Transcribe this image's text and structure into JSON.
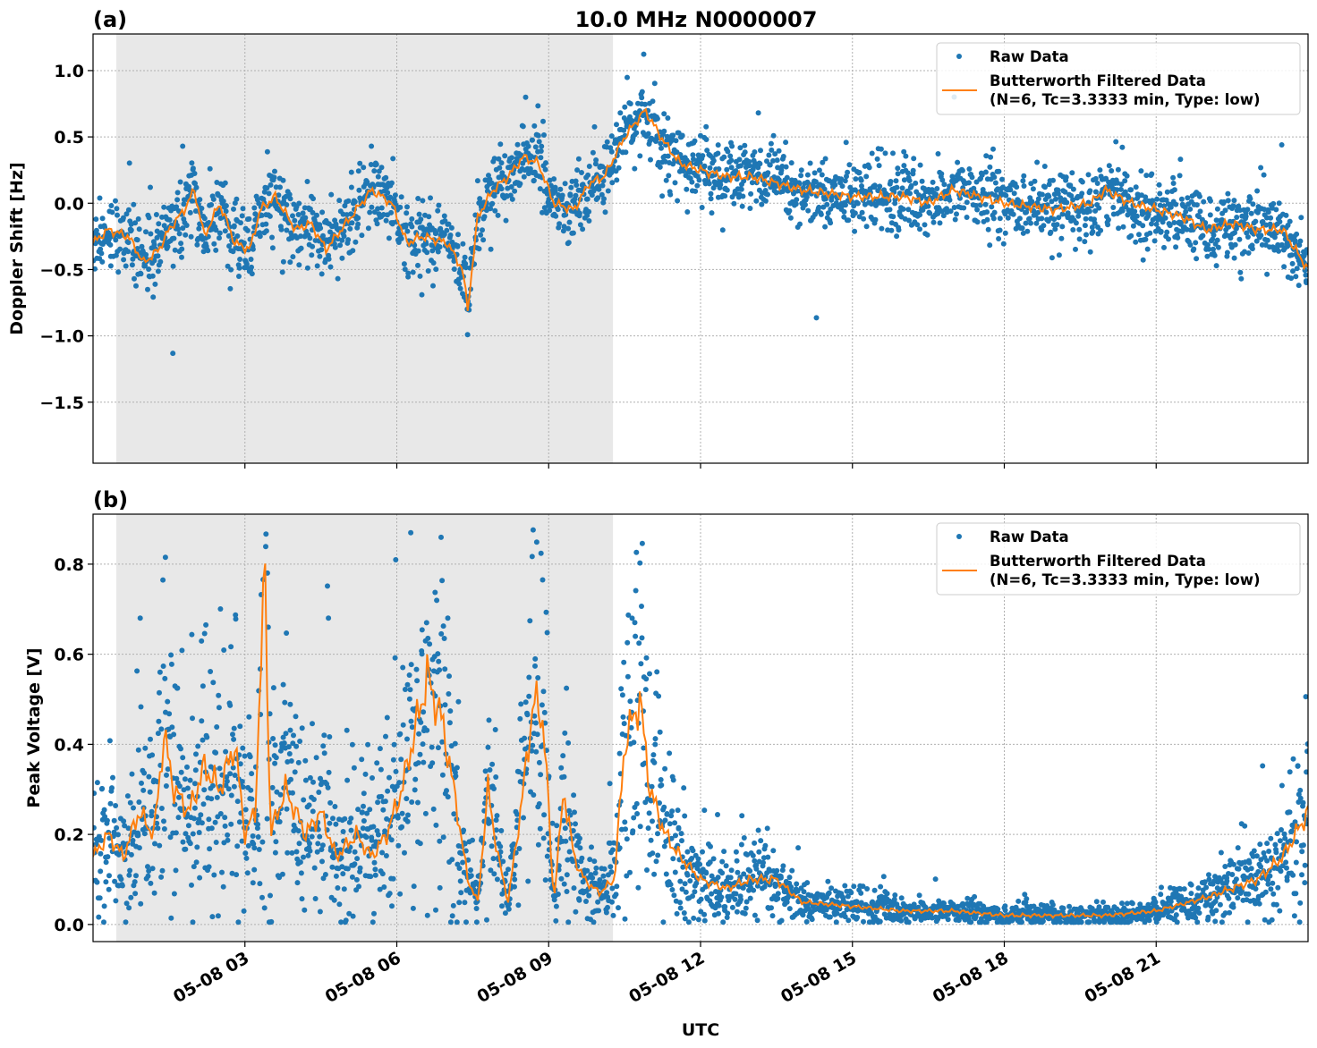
{
  "title": "10.0 MHz N0000007",
  "xlabel": "UTC",
  "x_ticks": [
    "05-08 03",
    "05-08 06",
    "05-08 09",
    "05-08 12",
    "05-08 15",
    "05-08 18",
    "05-08 21"
  ],
  "x_tick_hours": [
    3,
    6,
    9,
    12,
    15,
    18,
    21
  ],
  "xlim_hours": [
    0,
    24
  ],
  "shaded_region_hours": [
    0.46,
    10.27
  ],
  "colors": {
    "raw": "#1f77b4",
    "filtered": "#ff7f0e",
    "shade": "#e8e8e8"
  },
  "chart_data": [
    {
      "type": "scatter+line",
      "panel_label": "(a)",
      "ylabel": "Doppler Shift [Hz]",
      "ylim": [
        -1.96,
        1.276
      ],
      "y_ticks": [
        1.0,
        0.5,
        0.0,
        -0.5,
        -1.0,
        -1.5
      ],
      "y_tick_labels": [
        "1.0",
        "0.5",
        "0.0",
        "−0.5",
        "−1.0",
        "−1.5"
      ],
      "grid": true,
      "legend": {
        "position": "top-right",
        "entries": [
          "Raw Data",
          "Butterworth Filtered Data",
          "(N=6, Tc=3.3333 min, Type: low)"
        ]
      },
      "filtered": {
        "hours": [
          0,
          0.3,
          0.7,
          1.0,
          1.3,
          1.5,
          1.8,
          2.0,
          2.2,
          2.5,
          2.8,
          3.1,
          3.3,
          3.6,
          4.0,
          4.3,
          4.6,
          5.0,
          5.5,
          5.9,
          6.2,
          6.5,
          7.0,
          7.3,
          7.4,
          7.6,
          7.9,
          8.2,
          8.5,
          8.8,
          9.1,
          9.5,
          9.8,
          10.1,
          10.5,
          10.9,
          11.3,
          11.6,
          12.0,
          12.5,
          13.0,
          13.5,
          14.0,
          15.0,
          16.0,
          16.5,
          17.0,
          18.0,
          19.0,
          19.7,
          20.0,
          20.5,
          21.0,
          21.5,
          22.0,
          22.5,
          23.0,
          23.5,
          24.0
        ],
        "values": [
          -0.3,
          -0.2,
          -0.25,
          -0.45,
          -0.35,
          -0.2,
          -0.05,
          0.1,
          -0.25,
          0.0,
          -0.3,
          -0.35,
          -0.05,
          0.05,
          -0.2,
          -0.15,
          -0.35,
          -0.15,
          0.1,
          0.0,
          -0.3,
          -0.25,
          -0.3,
          -0.5,
          -0.8,
          -0.1,
          0.1,
          0.2,
          0.35,
          0.3,
          0.0,
          -0.05,
          0.15,
          0.2,
          0.5,
          0.7,
          0.45,
          0.3,
          0.25,
          0.2,
          0.2,
          0.15,
          0.1,
          0.05,
          0.05,
          0.0,
          0.1,
          0.0,
          -0.05,
          0.0,
          0.1,
          0.0,
          -0.05,
          -0.1,
          -0.2,
          -0.15,
          -0.2,
          -0.2,
          -0.5
        ]
      }
    },
    {
      "type": "scatter+line",
      "panel_label": "(b)",
      "ylabel": "Peak Voltage [V]",
      "ylim": [
        -0.038,
        0.911
      ],
      "y_ticks": [
        0.8,
        0.6,
        0.4,
        0.2,
        0.0
      ],
      "y_tick_labels": [
        "0.8",
        "0.6",
        "0.4",
        "0.2",
        "0.0"
      ],
      "grid": true,
      "legend": {
        "position": "top-right",
        "entries": [
          "Raw Data",
          "Butterworth Filtered Data",
          "(N=6, Tc=3.3333 min, Type: low)"
        ]
      },
      "filtered": {
        "hours": [
          0,
          0.3,
          0.6,
          0.9,
          1.2,
          1.4,
          1.6,
          1.9,
          2.2,
          2.5,
          2.8,
          3.0,
          3.2,
          3.4,
          3.5,
          3.8,
          4.2,
          4.5,
          4.8,
          5.2,
          5.5,
          5.8,
          6.1,
          6.4,
          6.6,
          6.9,
          7.2,
          7.4,
          7.6,
          7.8,
          8.0,
          8.2,
          8.5,
          8.7,
          8.9,
          9.1,
          9.3,
          9.5,
          9.7,
          10.0,
          10.3,
          10.5,
          10.8,
          11.0,
          11.3,
          11.6,
          12.0,
          12.5,
          13.0,
          13.5,
          14.0,
          15.0,
          16.0,
          17.0,
          18.0,
          19.0,
          20.0,
          21.0,
          22.0,
          23.0,
          23.5,
          24.0
        ],
        "values": [
          0.15,
          0.2,
          0.15,
          0.25,
          0.2,
          0.42,
          0.3,
          0.25,
          0.35,
          0.3,
          0.4,
          0.2,
          0.25,
          0.8,
          0.2,
          0.3,
          0.2,
          0.25,
          0.15,
          0.2,
          0.15,
          0.2,
          0.3,
          0.45,
          0.55,
          0.45,
          0.25,
          0.1,
          0.05,
          0.3,
          0.15,
          0.05,
          0.3,
          0.5,
          0.45,
          0.05,
          0.3,
          0.15,
          0.1,
          0.07,
          0.1,
          0.4,
          0.5,
          0.3,
          0.2,
          0.15,
          0.1,
          0.08,
          0.1,
          0.1,
          0.05,
          0.04,
          0.03,
          0.03,
          0.02,
          0.02,
          0.02,
          0.03,
          0.06,
          0.1,
          0.15,
          0.25
        ]
      }
    }
  ]
}
